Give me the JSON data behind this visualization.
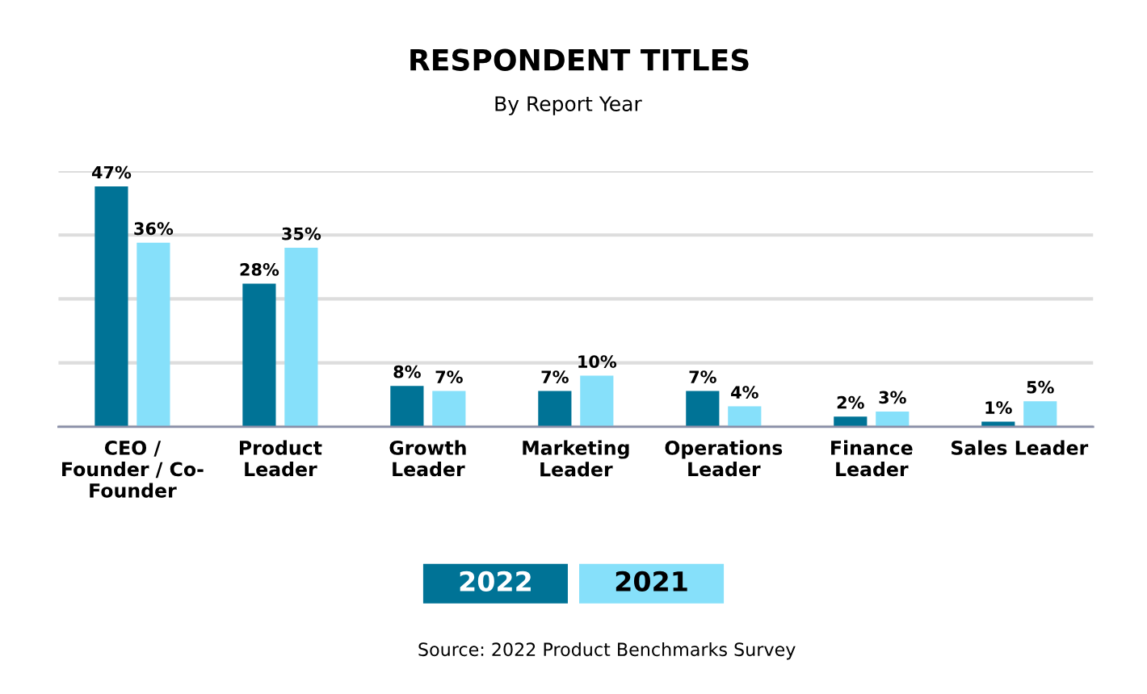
{
  "chart_data": {
    "type": "bar",
    "title": "RESPONDENT TITLES",
    "subtitle": "By Report Year",
    "categories": [
      "CEO /\nFounder / Co-\nFounder",
      "Product\nLeader",
      "Growth\nLeader",
      "Marketing\nLeader",
      "Operations\nLeader",
      "Finance\nLeader",
      "Sales Leader"
    ],
    "series": [
      {
        "name": "2022",
        "color": "#007396",
        "values": [
          47,
          28,
          8,
          7,
          7,
          2,
          1
        ],
        "value_labels": [
          "47%",
          "28%",
          "8%",
          "7%",
          "7%",
          "2%",
          "1%"
        ]
      },
      {
        "name": "2021",
        "color": "#86e0fa",
        "values": [
          36,
          35,
          7,
          10,
          4,
          3,
          5
        ],
        "value_labels": [
          "36%",
          "35%",
          "7%",
          "10%",
          "4%",
          "3%",
          "5%"
        ]
      }
    ],
    "ylim": [
      0,
      50
    ],
    "yticks": [
      {
        "value": 0,
        "label": null
      },
      {
        "value": 12.5,
        "label": null
      },
      {
        "value": 25,
        "label": null
      },
      {
        "value": 37.5,
        "label": null
      },
      {
        "value": 50,
        "label": null
      }
    ],
    "tick_labels": "x",
    "grid": "y",
    "legend": "bottom",
    "annotations": [
      "Source: 2022 Product Benchmarks Survey"
    ]
  }
}
